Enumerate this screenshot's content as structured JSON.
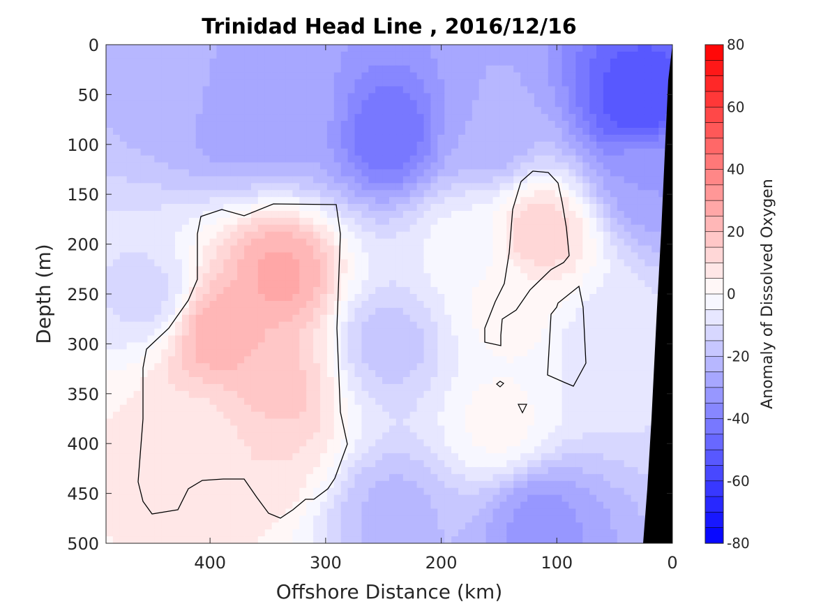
{
  "chart_data": {
    "type": "heatmap",
    "title": "Trinidad Head Line , 2016/12/16",
    "xlabel": "Offshore Distance (km)",
    "ylabel": "Depth (m)",
    "xlim": [
      490,
      0
    ],
    "ylim": [
      0,
      500
    ],
    "x_reversed": true,
    "y_reversed": true,
    "x_ticks": [
      400,
      300,
      200,
      100,
      0
    ],
    "y_ticks": [
      0,
      50,
      100,
      150,
      200,
      250,
      300,
      350,
      400,
      450,
      500
    ],
    "colorbar": {
      "label": "Anomaly of Dissolved Oxygen",
      "range": [
        -80,
        80
      ],
      "step": 5,
      "ticks": [
        80,
        60,
        40,
        20,
        0,
        -20,
        -40,
        -60,
        -80
      ],
      "negative_color": "#0000ff",
      "zero_color": "#ffffff",
      "positive_color": "#ff0000"
    },
    "zero_contour_color": "#000000",
    "bathymetry_color": "#000000",
    "features": [
      {
        "x": 380,
        "y": 70,
        "value": -30
      },
      {
        "x": 330,
        "y": 70,
        "value": -28
      },
      {
        "x": 430,
        "y": 50,
        "value": -22
      },
      {
        "x": 245,
        "y": 90,
        "value": -45
      },
      {
        "x": 160,
        "y": 90,
        "value": -25
      },
      {
        "x": 30,
        "y": 60,
        "value": -55
      },
      {
        "x": 20,
        "y": 130,
        "value": -30
      },
      {
        "x": 245,
        "y": 300,
        "value": -18
      },
      {
        "x": 240,
        "y": 470,
        "value": -22
      },
      {
        "x": 115,
        "y": 480,
        "value": -32
      },
      {
        "x": 455,
        "y": 250,
        "value": -12
      },
      {
        "x": 60,
        "y": 300,
        "value": -8
      },
      {
        "x": 390,
        "y": 290,
        "value": 25
      },
      {
        "x": 340,
        "y": 230,
        "value": 27
      },
      {
        "x": 345,
        "y": 350,
        "value": 18
      },
      {
        "x": 360,
        "y": 400,
        "value": 10
      },
      {
        "x": 410,
        "y": 400,
        "value": 6
      },
      {
        "x": 115,
        "y": 190,
        "value": 15
      },
      {
        "x": 140,
        "y": 260,
        "value": 3
      },
      {
        "x": 150,
        "y": 380,
        "value": 2
      },
      {
        "x": 180,
        "y": 200,
        "value": -3
      }
    ]
  }
}
